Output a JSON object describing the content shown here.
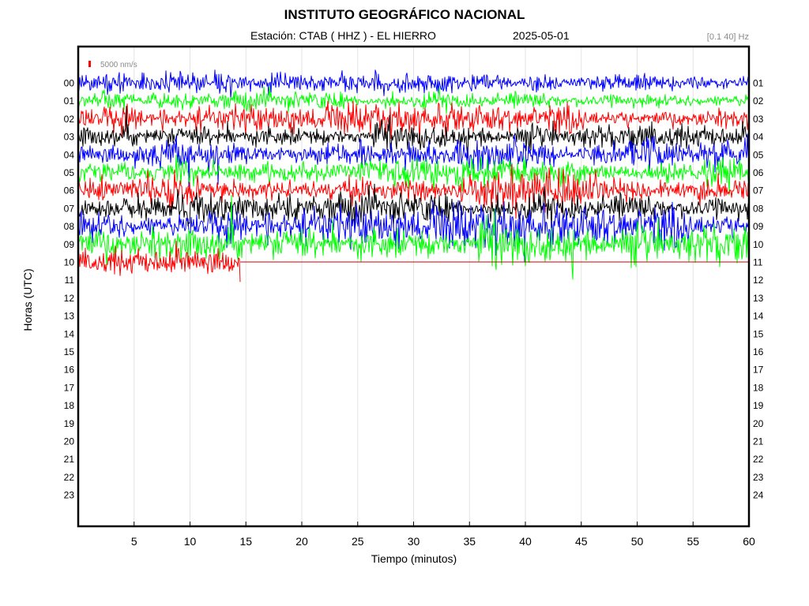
{
  "header": {
    "title": "INSTITUTO GEOGRÁFICO NACIONAL",
    "station_line": "Estación:  CTAB ( HHZ ) - EL HIERRO",
    "date": "2025-05-01",
    "filter_band": "[0.1 40] Hz"
  },
  "chart_data": {
    "type": "line",
    "title": "INSTITUTO GEOGRÁFICO NACIONAL",
    "xlabel": "Tiempo (minutos)",
    "ylabel": "Horas (UTC)",
    "xlim": [
      0,
      60
    ],
    "x_ticks": [
      "5",
      "10",
      "15",
      "20",
      "25",
      "30",
      "35",
      "40",
      "45",
      "50",
      "55",
      "60"
    ],
    "left_hour_labels": [
      "00",
      "01",
      "02",
      "03",
      "04",
      "05",
      "06",
      "07",
      "08",
      "09",
      "10",
      "11",
      "12",
      "13",
      "14",
      "15",
      "16",
      "17",
      "18",
      "19",
      "20",
      "21",
      "22",
      "23"
    ],
    "right_hour_labels": [
      "01",
      "02",
      "03",
      "04",
      "05",
      "06",
      "07",
      "08",
      "09",
      "10",
      "11",
      "12",
      "13",
      "14",
      "15",
      "16",
      "17",
      "18",
      "19",
      "20",
      "21",
      "22",
      "23",
      "24"
    ],
    "scale_label": "5000 nm/s",
    "scale_color": "#ff0000",
    "grid": true,
    "colors_cycle": [
      "#0000ff",
      "#00ff00",
      "#ff0000",
      "#000000"
    ],
    "series": [
      {
        "hour": "00",
        "color": "#0000ff",
        "end_minute": 60,
        "amplitude": 0.55
      },
      {
        "hour": "01",
        "color": "#00ff00",
        "end_minute": 60,
        "amplitude": 0.6
      },
      {
        "hour": "02",
        "color": "#ff0000",
        "end_minute": 60,
        "amplitude": 0.75
      },
      {
        "hour": "03",
        "color": "#000000",
        "end_minute": 60,
        "amplitude": 0.75
      },
      {
        "hour": "04",
        "color": "#0000ff",
        "end_minute": 60,
        "amplitude": 0.8
      },
      {
        "hour": "05",
        "color": "#00ff00",
        "end_minute": 60,
        "amplitude": 0.85
      },
      {
        "hour": "06",
        "color": "#ff0000",
        "end_minute": 60,
        "amplitude": 0.95
      },
      {
        "hour": "07",
        "color": "#000000",
        "end_minute": 60,
        "amplitude": 1.0
      },
      {
        "hour": "08",
        "color": "#0000ff",
        "end_minute": 60,
        "amplitude": 1.1
      },
      {
        "hour": "09",
        "color": "#00ff00",
        "end_minute": 60,
        "amplitude": 1.25
      },
      {
        "hour": "10",
        "color": "#ff0000",
        "end_minute": 14.5,
        "amplitude": 1.15
      }
    ]
  }
}
